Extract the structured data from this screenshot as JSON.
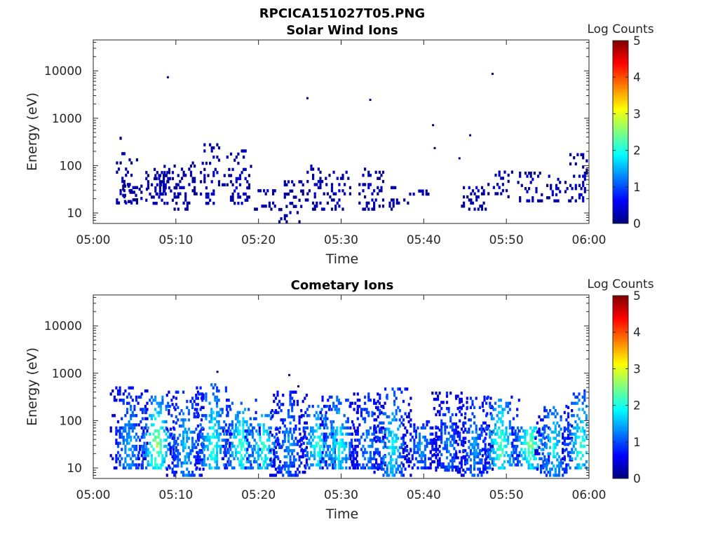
{
  "figure": {
    "title": "RPCICA151027T05.PNG"
  },
  "colorbar": {
    "label": "Log Counts",
    "ticks": [
      "0",
      "1",
      "2",
      "3",
      "4",
      "5"
    ],
    "range": [
      0,
      5
    ],
    "colormap": "jet"
  },
  "axes_common": {
    "xlabel": "Time",
    "ylabel": "Energy (eV)",
    "x_ticks": [
      "05:00",
      "05:10",
      "05:20",
      "05:30",
      "05:40",
      "05:50",
      "06:00"
    ],
    "y_ticks": [
      "10",
      "100",
      "1000",
      "10000"
    ],
    "y_scale": "log",
    "x_range_minutes": [
      0,
      60
    ]
  },
  "chart_data": [
    {
      "type": "heatmap",
      "title": "Solar Wind Ions",
      "xlabel": "Time",
      "ylabel": "Energy (eV)",
      "xlim": [
        "05:00",
        "06:00"
      ],
      "ylim": [
        6,
        45000
      ],
      "yscale": "log",
      "zlabel": "Log Counts",
      "zlim": [
        0,
        5
      ],
      "bursts": [
        {
          "t_min": 3.8,
          "e_lo": 14,
          "e_hi": 380,
          "level": 0.3
        },
        {
          "t_min": 5.0,
          "e_lo": 15,
          "e_hi": 40,
          "level": 0.25
        },
        {
          "t_min": 7.8,
          "e_lo": 16,
          "e_hi": 100,
          "level": 0.35
        },
        {
          "t_min": 8.8,
          "e_lo": 16,
          "e_hi": 100,
          "level": 0.3
        },
        {
          "t_min": 11.0,
          "e_lo": 12,
          "e_hi": 130,
          "level": 0.25
        },
        {
          "t_min": 14.4,
          "e_lo": 16,
          "e_hi": 300,
          "level": 0.3
        },
        {
          "t_min": 17.6,
          "e_lo": 16,
          "e_hi": 230,
          "level": 0.35
        },
        {
          "t_min": 20.5,
          "e_lo": 12,
          "e_hi": 38,
          "level": 0.3
        },
        {
          "t_min": 23.9,
          "e_lo": 6.5,
          "e_hi": 50,
          "level": 0.25
        },
        {
          "t_min": 27.1,
          "e_lo": 12,
          "e_hi": 100,
          "level": 0.25
        },
        {
          "t_min": 29.6,
          "e_lo": 12,
          "e_hi": 90,
          "level": 0.3
        },
        {
          "t_min": 33.6,
          "e_lo": 12,
          "e_hi": 90,
          "level": 0.25
        },
        {
          "t_min": 36.6,
          "e_lo": 12,
          "e_hi": 35,
          "level": 0.25
        },
        {
          "t_min": 39.5,
          "e_lo": 25,
          "e_hi": 30,
          "level": 0.2
        },
        {
          "t_min": 46.0,
          "e_lo": 12,
          "e_hi": 36,
          "level": 0.25
        },
        {
          "t_min": 49.2,
          "e_lo": 22,
          "e_hi": 80,
          "level": 0.3
        },
        {
          "t_min": 52.8,
          "e_lo": 18,
          "e_hi": 80,
          "level": 0.3
        },
        {
          "t_min": 56.1,
          "e_lo": 18,
          "e_hi": 60,
          "level": 0.25
        },
        {
          "t_min": 58.9,
          "e_lo": 18,
          "e_hi": 170,
          "level": 0.3
        }
      ],
      "isolated_points": [
        {
          "t_min": 8.9,
          "e": 7200
        },
        {
          "t_min": 25.8,
          "e": 2600
        },
        {
          "t_min": 33.4,
          "e": 2400
        },
        {
          "t_min": 41.0,
          "e": 700
        },
        {
          "t_min": 41.2,
          "e": 230
        },
        {
          "t_min": 44.2,
          "e": 140
        },
        {
          "t_min": 45.5,
          "e": 430
        },
        {
          "t_min": 48.2,
          "e": 8500
        }
      ]
    },
    {
      "type": "heatmap",
      "title": "Cometary Ions",
      "xlabel": "Time",
      "ylabel": "Energy (eV)",
      "xlim": [
        "05:00",
        "06:00"
      ],
      "ylim": [
        6,
        45000
      ],
      "yscale": "log",
      "zlabel": "Log Counts",
      "zlim": [
        0,
        5
      ],
      "bursts": [
        {
          "t_min": 4.2,
          "e_lo": 10,
          "e_hi": 520,
          "level": 1.3
        },
        {
          "t_min": 7.6,
          "e_lo": 10,
          "e_hi": 340,
          "level": 2.2
        },
        {
          "t_min": 11.0,
          "e_lo": 7,
          "e_hi": 440,
          "level": 1.4
        },
        {
          "t_min": 14.4,
          "e_lo": 10,
          "e_hi": 640,
          "level": 1.8
        },
        {
          "t_min": 17.8,
          "e_lo": 10,
          "e_hi": 280,
          "level": 1.9
        },
        {
          "t_min": 20.5,
          "e_lo": 10,
          "e_hi": 160,
          "level": 1.9
        },
        {
          "t_min": 23.5,
          "e_lo": 7,
          "e_hi": 460,
          "level": 1.2
        },
        {
          "t_min": 27.1,
          "e_lo": 10,
          "e_hi": 210,
          "level": 1.8
        },
        {
          "t_min": 29.6,
          "e_lo": 10,
          "e_hi": 330,
          "level": 1.7
        },
        {
          "t_min": 33.2,
          "e_lo": 10,
          "e_hi": 420,
          "level": 1.2
        },
        {
          "t_min": 36.1,
          "e_lo": 7,
          "e_hi": 480,
          "level": 1.6
        },
        {
          "t_min": 39.6,
          "e_lo": 10,
          "e_hi": 95,
          "level": 1.2
        },
        {
          "t_min": 42.9,
          "e_lo": 9,
          "e_hi": 430,
          "level": 1.1
        },
        {
          "t_min": 46.0,
          "e_lo": 7,
          "e_hi": 330,
          "level": 1.2
        },
        {
          "t_min": 49.2,
          "e_lo": 10,
          "e_hi": 340,
          "level": 2.0
        },
        {
          "t_min": 52.8,
          "e_lo": 10,
          "e_hi": 80,
          "level": 2.2
        },
        {
          "t_min": 55.6,
          "e_lo": 7,
          "e_hi": 210,
          "level": 1.6
        },
        {
          "t_min": 58.9,
          "e_lo": 10,
          "e_hi": 430,
          "level": 1.8
        }
      ],
      "isolated_points": [
        {
          "t_min": 14.9,
          "e": 1050
        },
        {
          "t_min": 23.6,
          "e": 900
        },
        {
          "t_min": 24.7,
          "e": 520
        }
      ]
    }
  ]
}
